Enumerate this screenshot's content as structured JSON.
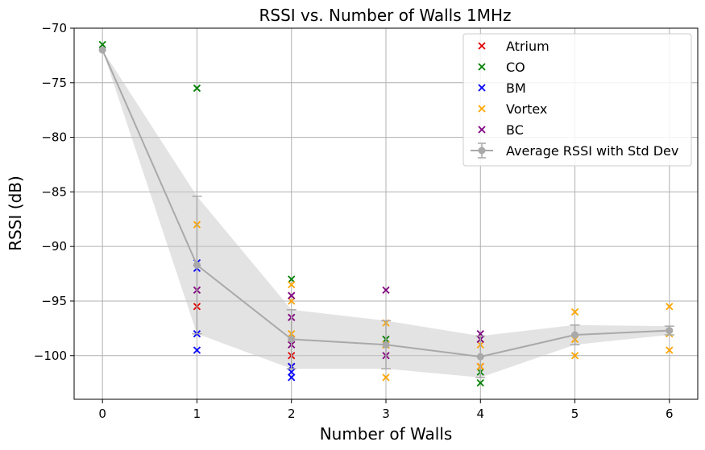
{
  "chart_data": {
    "type": "scatter",
    "title": "RSSI vs. Number of Walls 1MHz",
    "xlabel": "Number of Walls",
    "ylabel": "RSSI (dB)",
    "xlim": [
      -0.3,
      6.3
    ],
    "ylim": [
      -104,
      -70
    ],
    "xticks": [
      0,
      1,
      2,
      3,
      4,
      5,
      6
    ],
    "yticks": [
      -70,
      -75,
      -80,
      -85,
      -90,
      -95,
      -100
    ],
    "ytick_labels": [
      "−70",
      "−75",
      "−80",
      "−85",
      "−90",
      "−95",
      "−100"
    ],
    "grid": true,
    "legend_position": "top-right",
    "series": [
      {
        "name": "Atrium",
        "color": "#e00000",
        "marker": "x",
        "points": [
          [
            1,
            -95.5
          ],
          [
            2,
            -98.5
          ],
          [
            2,
            -100
          ],
          [
            2,
            -101
          ],
          [
            3,
            -99
          ],
          [
            4,
            -101
          ]
        ]
      },
      {
        "name": "CO",
        "color": "#008000",
        "marker": "x",
        "points": [
          [
            0,
            -71.5
          ],
          [
            1,
            -75.5
          ],
          [
            2,
            -93
          ],
          [
            3,
            -98.5
          ],
          [
            4,
            -101.5
          ],
          [
            4,
            -102.5
          ]
        ]
      },
      {
        "name": "BM",
        "color": "#0000ff",
        "marker": "x",
        "points": [
          [
            1,
            -91.5
          ],
          [
            1,
            -92
          ],
          [
            1,
            -98
          ],
          [
            1,
            -99.5
          ],
          [
            2,
            -101
          ],
          [
            2,
            -101.5
          ],
          [
            2,
            -102
          ]
        ]
      },
      {
        "name": "Vortex",
        "color": "#ffa500",
        "marker": "x",
        "points": [
          [
            1,
            -88
          ],
          [
            2,
            -93.5
          ],
          [
            2,
            -95
          ],
          [
            2,
            -98
          ],
          [
            3,
            -97
          ],
          [
            3,
            -99
          ],
          [
            3,
            -102
          ],
          [
            4,
            -101
          ],
          [
            4,
            -99
          ],
          [
            5,
            -96
          ],
          [
            5,
            -98.5
          ],
          [
            5,
            -100
          ],
          [
            6,
            -95.5
          ],
          [
            6,
            -98
          ],
          [
            6,
            -99.5
          ]
        ]
      },
      {
        "name": "BC",
        "color": "#800080",
        "marker": "x",
        "points": [
          [
            1,
            -94
          ],
          [
            2,
            -94.5
          ],
          [
            2,
            -96.5
          ],
          [
            2,
            -99
          ],
          [
            3,
            -94
          ],
          [
            3,
            -100
          ],
          [
            4,
            -98
          ],
          [
            4,
            -98.5
          ]
        ]
      }
    ],
    "average": {
      "name": "Average RSSI with Std Dev",
      "color": "#a9a9a9",
      "x": [
        0,
        1,
        2,
        3,
        4,
        5,
        6
      ],
      "y": [
        -72,
        -91.7,
        -98.5,
        -99,
        -100.1,
        -98.1,
        -97.7
      ],
      "std": [
        0,
        6.3,
        2.7,
        2.2,
        1.9,
        0.9,
        0.4
      ]
    }
  }
}
